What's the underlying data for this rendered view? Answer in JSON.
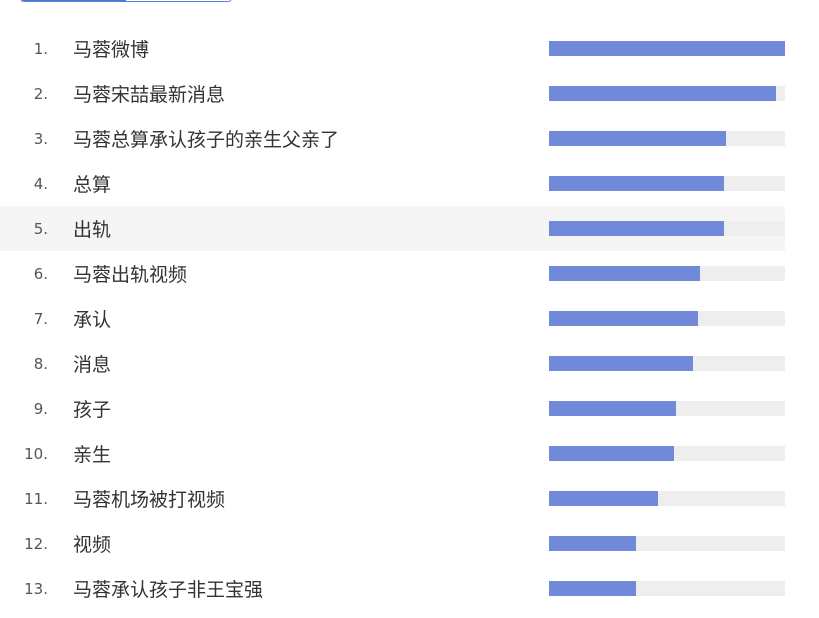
{
  "colors": {
    "bar": "#7189d9",
    "track": "#eeeeee",
    "highlight_row": "#f5f5f5"
  },
  "items": [
    {
      "rank": "1.",
      "keyword": "马蓉微博",
      "value": 1.0
    },
    {
      "rank": "2.",
      "keyword": "马蓉宋喆最新消息",
      "value": 0.96
    },
    {
      "rank": "3.",
      "keyword": "马蓉总算承认孩子的亲生父亲了",
      "value": 0.75
    },
    {
      "rank": "4.",
      "keyword": "总算",
      "value": 0.74
    },
    {
      "rank": "5.",
      "keyword": "出轨",
      "value": 0.74
    },
    {
      "rank": "6.",
      "keyword": "马蓉出轨视频",
      "value": 0.64
    },
    {
      "rank": "7.",
      "keyword": "承认",
      "value": 0.63
    },
    {
      "rank": "8.",
      "keyword": "消息",
      "value": 0.61
    },
    {
      "rank": "9.",
      "keyword": "孩子",
      "value": 0.54
    },
    {
      "rank": "10.",
      "keyword": "亲生",
      "value": 0.53
    },
    {
      "rank": "11.",
      "keyword": "马蓉机场被打视频",
      "value": 0.46
    },
    {
      "rank": "12.",
      "keyword": "视频",
      "value": 0.37
    },
    {
      "rank": "13.",
      "keyword": "马蓉承认孩子非王宝强",
      "value": 0.37
    }
  ]
}
